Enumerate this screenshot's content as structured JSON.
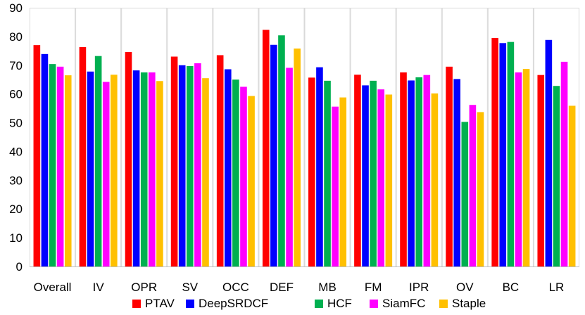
{
  "chart_data": {
    "type": "bar",
    "categories": [
      "Overall",
      "IV",
      "OPR",
      "SV",
      "OCC",
      "DEF",
      "MB",
      "FM",
      "IPR",
      "OV",
      "BC",
      "LR"
    ],
    "series": [
      {
        "name": "PTAV",
        "color": "#ff0000",
        "values": [
          77.0,
          76.3,
          74.6,
          73.0,
          73.5,
          82.3,
          65.7,
          66.7,
          67.5,
          69.5,
          79.5,
          66.6
        ]
      },
      {
        "name": "DeepSRDCF",
        "color": "#0000ff",
        "values": [
          73.9,
          67.8,
          68.2,
          70.0,
          68.6,
          77.1,
          69.3,
          63.0,
          64.7,
          65.2,
          77.7,
          78.8
        ]
      },
      {
        "name": "HCF",
        "color": "#00b050",
        "values": [
          70.4,
          73.2,
          67.5,
          69.7,
          65.0,
          80.4,
          64.6,
          64.6,
          65.8,
          50.3,
          78.1,
          62.8
        ]
      },
      {
        "name": "SiamFC",
        "color": "#ff00ff",
        "values": [
          69.5,
          64.2,
          67.5,
          70.7,
          62.5,
          69.1,
          55.6,
          61.6,
          66.6,
          56.2,
          67.5,
          71.2
        ]
      },
      {
        "name": "Staple",
        "color": "#ffc000",
        "values": [
          66.5,
          66.7,
          64.5,
          65.5,
          59.3,
          75.8,
          58.8,
          59.8,
          60.2,
          53.7,
          68.7,
          55.9
        ]
      }
    ],
    "xlabel": "",
    "ylabel": "",
    "ylim": [
      0,
      90
    ],
    "yticks": [
      0,
      10,
      20,
      30,
      40,
      50,
      60,
      70,
      80,
      90
    ],
    "grid": false,
    "legend_position": "bottom"
  }
}
